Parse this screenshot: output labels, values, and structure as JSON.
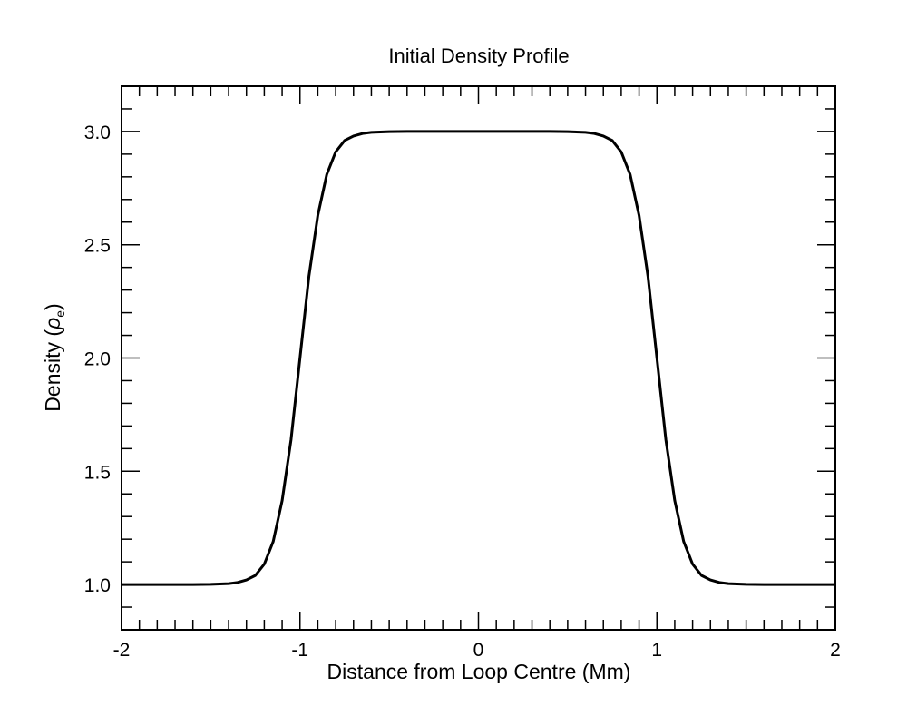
{
  "chart_data": {
    "type": "line",
    "title": "Initial Density Profile",
    "xlabel": "Distance from Loop Centre (Mm)",
    "ylabel": {
      "prefix": "Density (",
      "symbol": "ρ",
      "subscript": "e",
      "suffix": ")"
    },
    "xlim": [
      -2,
      2
    ],
    "ylim": [
      0.8,
      3.2
    ],
    "x_ticks": [
      {
        "value": -2,
        "label": "-2"
      },
      {
        "value": -1,
        "label": "-1"
      },
      {
        "value": 0,
        "label": "0"
      },
      {
        "value": 1,
        "label": "1"
      },
      {
        "value": 2,
        "label": "2"
      }
    ],
    "y_ticks": [
      {
        "value": 1.0,
        "label": "1.0"
      },
      {
        "value": 1.5,
        "label": "1.5"
      },
      {
        "value": 2.0,
        "label": "2.0"
      },
      {
        "value": 2.5,
        "label": "2.5"
      },
      {
        "value": 3.0,
        "label": "3.0"
      }
    ],
    "x_minor_step": 0.1,
    "y_minor_step": 0.1,
    "grid": false,
    "legend": "none",
    "series": [
      {
        "color": "#000000",
        "x": [
          -2.0,
          -1.8,
          -1.6,
          -1.5,
          -1.4,
          -1.35,
          -1.3,
          -1.25,
          -1.2,
          -1.15,
          -1.1,
          -1.05,
          -1.0,
          -0.95,
          -0.9,
          -0.85,
          -0.8,
          -0.75,
          -0.7,
          -0.65,
          -0.6,
          -0.5,
          -0.4,
          -0.2,
          0.0,
          0.2,
          0.4,
          0.5,
          0.6,
          0.65,
          0.7,
          0.75,
          0.8,
          0.85,
          0.9,
          0.95,
          1.0,
          1.05,
          1.1,
          1.15,
          1.2,
          1.25,
          1.3,
          1.35,
          1.4,
          1.5,
          1.6,
          1.8,
          2.0
        ],
        "y": [
          1.0,
          1.0,
          1.0,
          1.001,
          1.004,
          1.009,
          1.02,
          1.04,
          1.09,
          1.19,
          1.37,
          1.64,
          2.0,
          2.36,
          2.63,
          2.81,
          2.91,
          2.96,
          2.98,
          2.991,
          2.996,
          2.999,
          3.0,
          3.0,
          3.0,
          3.0,
          3.0,
          2.999,
          2.996,
          2.991,
          2.98,
          2.96,
          2.91,
          2.81,
          2.63,
          2.36,
          2.0,
          1.64,
          1.37,
          1.19,
          1.09,
          1.04,
          1.02,
          1.009,
          1.004,
          1.001,
          1.0,
          1.0,
          1.0
        ]
      }
    ]
  }
}
